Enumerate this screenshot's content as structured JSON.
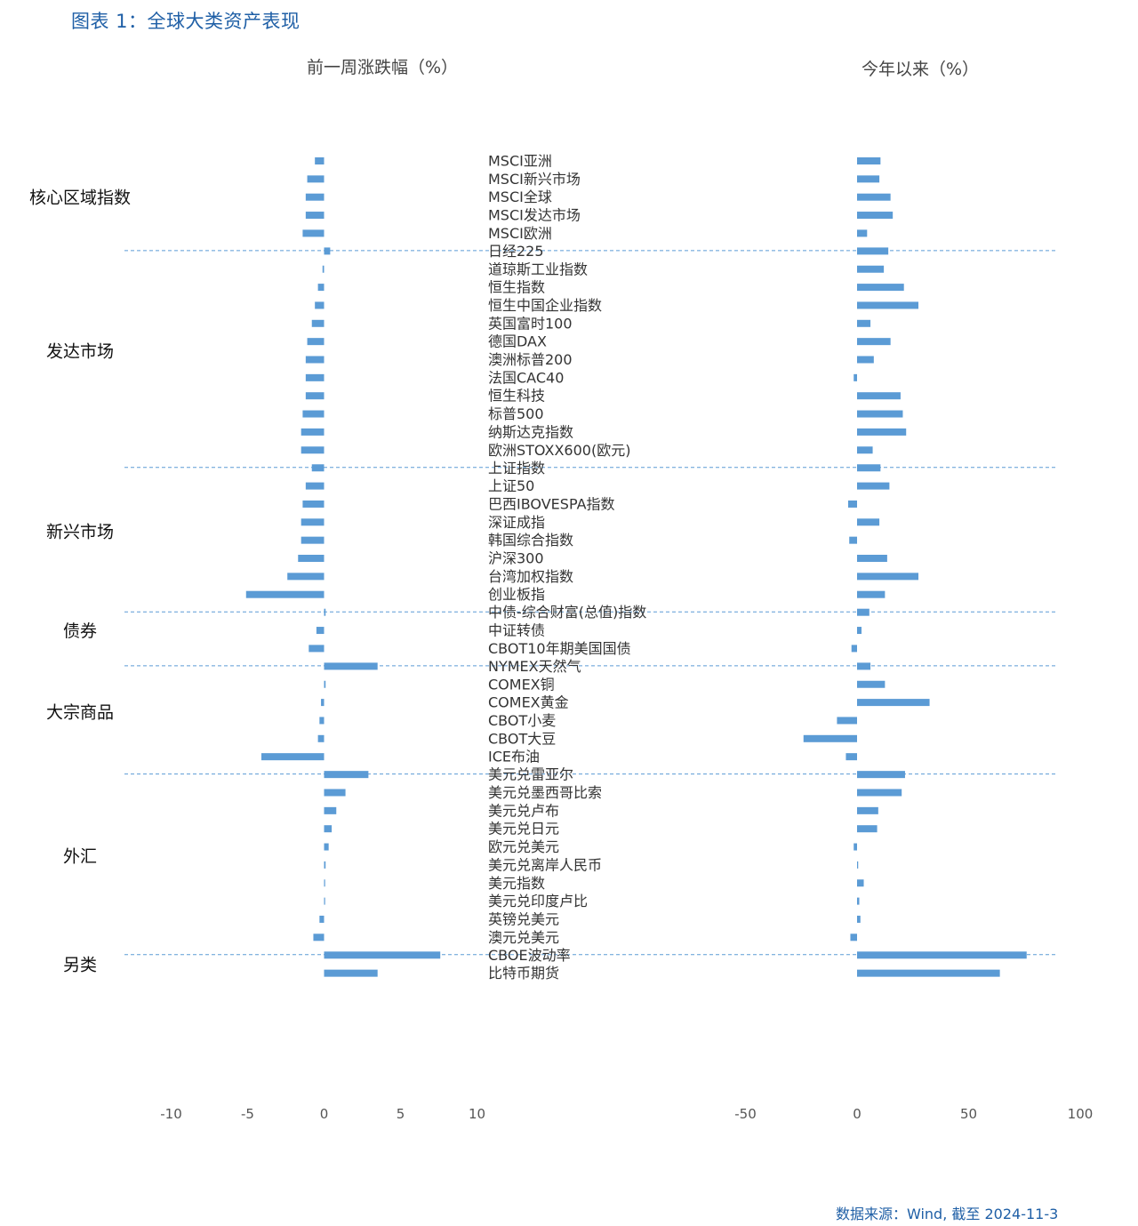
{
  "figure": {
    "title": "图表 1：全球大类资产表现",
    "source": "数据来源：Wind, 截至 2024-11-3"
  },
  "colors": {
    "bar": "#5b9bd5",
    "divider": "#5b9bd5",
    "title": "#1f5fa6",
    "text": "#333333",
    "tick": "#555555"
  },
  "chart_data": {
    "type": "bar",
    "orientation": "horizontal",
    "panels": [
      {
        "key": "week",
        "title": "前一周涨跌幅（%）",
        "xlim": [
          -10,
          10
        ],
        "ticks": [
          -10,
          -5,
          0,
          5,
          10
        ],
        "grid": false
      },
      {
        "key": "ytd",
        "title": "今年以来（%）",
        "xlim": [
          -50,
          100
        ],
        "ticks": [
          -50,
          0,
          50,
          100
        ],
        "grid": false
      }
    ],
    "groups": [
      {
        "name": "核心区域指数",
        "items": [
          {
            "label": "MSCI亚洲",
            "week": -0.6,
            "ytd": 10.5
          },
          {
            "label": "MSCI新兴市场",
            "week": -1.1,
            "ytd": 10.0
          },
          {
            "label": "MSCI全球",
            "week": -1.2,
            "ytd": 15.0
          },
          {
            "label": "MSCI发达市场",
            "week": -1.2,
            "ytd": 16.0
          },
          {
            "label": "MSCI欧洲",
            "week": -1.4,
            "ytd": 4.5
          }
        ]
      },
      {
        "name": "发达市场",
        "items": [
          {
            "label": "日经225",
            "week": 0.4,
            "ytd": 14.0
          },
          {
            "label": "道琼斯工业指数",
            "week": -0.1,
            "ytd": 12.0
          },
          {
            "label": "恒生指数",
            "week": -0.4,
            "ytd": 21.0
          },
          {
            "label": "恒生中国企业指数",
            "week": -0.6,
            "ytd": 27.5
          },
          {
            "label": "英国富时100",
            "week": -0.8,
            "ytd": 6.0
          },
          {
            "label": "德国DAX",
            "week": -1.1,
            "ytd": 15.0
          },
          {
            "label": "澳洲标普200",
            "week": -1.2,
            "ytd": 7.5
          },
          {
            "label": "法国CAC40",
            "week": -1.2,
            "ytd": -1.5
          },
          {
            "label": "恒生科技",
            "week": -1.2,
            "ytd": 19.5
          },
          {
            "label": "标普500",
            "week": -1.4,
            "ytd": 20.5
          },
          {
            "label": "纳斯达克指数",
            "week": -1.5,
            "ytd": 22.0
          },
          {
            "label": "欧洲STOXX600(欧元)",
            "week": -1.5,
            "ytd": 7.0
          }
        ]
      },
      {
        "name": "新兴市场",
        "items": [
          {
            "label": "上证指数",
            "week": -0.8,
            "ytd": 10.5
          },
          {
            "label": "上证50",
            "week": -1.2,
            "ytd": 14.5
          },
          {
            "label": "巴西IBOVESPA指数",
            "week": -1.4,
            "ytd": -4.0
          },
          {
            "label": "深证成指",
            "week": -1.5,
            "ytd": 10.0
          },
          {
            "label": "韩国综合指数",
            "week": -1.5,
            "ytd": -3.5
          },
          {
            "label": "沪深300",
            "week": -1.7,
            "ytd": 13.5
          },
          {
            "label": "台湾加权指数",
            "week": -2.4,
            "ytd": 27.5
          },
          {
            "label": "创业板指",
            "week": -5.1,
            "ytd": 12.5
          }
        ]
      },
      {
        "name": "债券",
        "items": [
          {
            "label": "中债-综合财富(总值)指数",
            "week": 0.1,
            "ytd": 5.5
          },
          {
            "label": "中证转债",
            "week": -0.5,
            "ytd": 2.0
          },
          {
            "label": "CBOT10年期美国国债",
            "week": -1.0,
            "ytd": -2.5
          }
        ]
      },
      {
        "name": "大宗商品",
        "items": [
          {
            "label": "NYMEX天然气",
            "week": 3.5,
            "ytd": 6.0
          },
          {
            "label": "COMEX铜",
            "week": 0.1,
            "ytd": 12.5
          },
          {
            "label": "COMEX黄金",
            "week": -0.2,
            "ytd": 32.5
          },
          {
            "label": "CBOT小麦",
            "week": -0.3,
            "ytd": -9.0
          },
          {
            "label": "CBOT大豆",
            "week": -0.4,
            "ytd": -24.0
          },
          {
            "label": "ICE布油",
            "week": -4.1,
            "ytd": -5.0
          }
        ]
      },
      {
        "name": "外汇",
        "items": [
          {
            "label": "美元兑雷亚尔",
            "week": 2.9,
            "ytd": 21.5
          },
          {
            "label": "美元兑墨西哥比索",
            "week": 1.4,
            "ytd": 20.0
          },
          {
            "label": "美元兑卢布",
            "week": 0.8,
            "ytd": 9.5
          },
          {
            "label": "美元兑日元",
            "week": 0.5,
            "ytd": 9.0
          },
          {
            "label": "欧元兑美元",
            "week": 0.3,
            "ytd": -1.5
          },
          {
            "label": "美元兑离岸人民币",
            "week": 0.1,
            "ytd": 0.5
          },
          {
            "label": "美元指数",
            "week": 0.0,
            "ytd": 3.0
          },
          {
            "label": "美元兑印度卢比",
            "week": 0.0,
            "ytd": 1.0
          },
          {
            "label": "英镑兑美元",
            "week": -0.3,
            "ytd": 1.5
          },
          {
            "label": "澳元兑美元",
            "week": -0.7,
            "ytd": -3.0
          }
        ]
      },
      {
        "name": "另类",
        "items": [
          {
            "label": "CBOE波动率",
            "week": 7.6,
            "ytd": 76.0
          },
          {
            "label": "比特币期货",
            "week": 3.5,
            "ytd": 64.0
          }
        ]
      }
    ]
  }
}
